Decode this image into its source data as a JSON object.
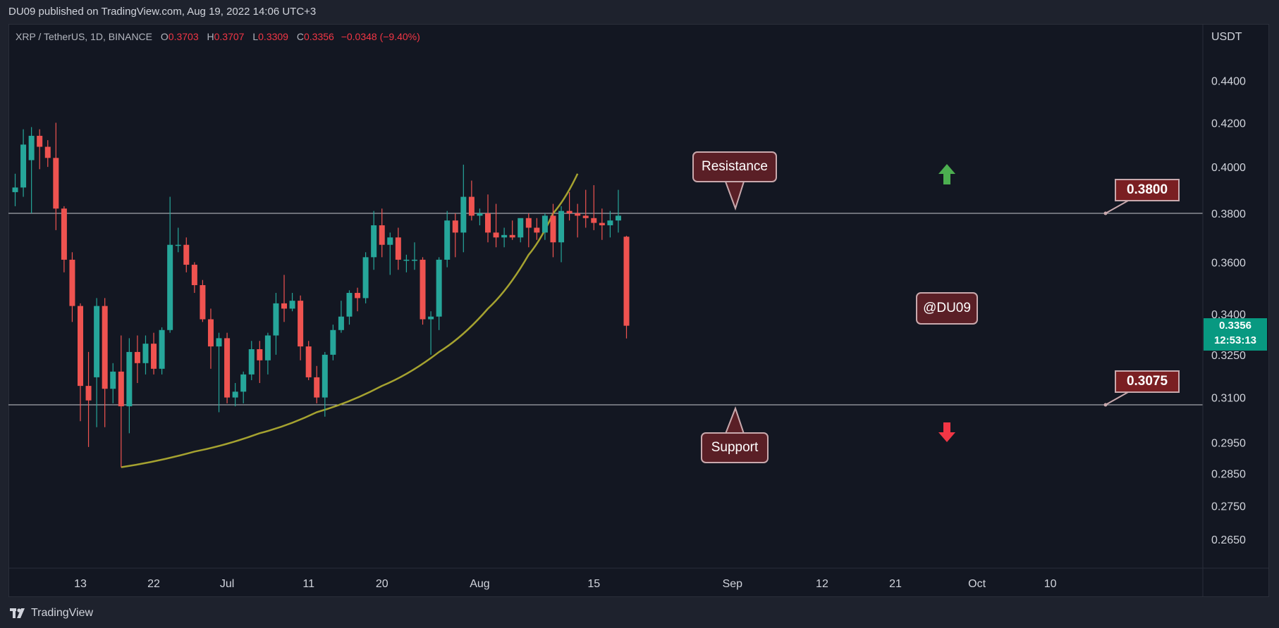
{
  "header": {
    "published": "DU09 published on TradingView.com, Aug 19, 2022 14:06 UTC+3"
  },
  "legend": {
    "symbol": "XRP / TetherUS, 1D, BINANCE",
    "open_label": "O",
    "open": "0.3703",
    "high_label": "H",
    "high": "0.3707",
    "low_label": "L",
    "low": "0.3309",
    "close_label": "C",
    "close": "0.3356",
    "change": "−0.0348 (−9.40%)"
  },
  "axis": {
    "currency": "USDT",
    "current_price": "0.3356",
    "countdown": "12:53:13"
  },
  "annotations": {
    "resistance": "Resistance",
    "support": "Support",
    "watermark": "@DU09",
    "resistance_level": "0.3800",
    "support_level": "0.3075"
  },
  "footer": {
    "brand": "TradingView"
  },
  "colors": {
    "up": "#26a69a",
    "down": "#ef5350",
    "curve": "#a5a230",
    "background": "#131722"
  },
  "icons": [
    "green-up-arrow-icon",
    "red-down-arrow-icon",
    "tradingview-logo-icon"
  ],
  "chart_data": {
    "type": "candlestick",
    "scale": "log",
    "y_ticks": [
      0.44,
      0.42,
      0.4,
      0.38,
      0.36,
      0.34,
      0.325,
      0.31,
      0.295,
      0.285,
      0.275,
      0.265
    ],
    "y_tick_labels": [
      "0.4400",
      "0.4200",
      "0.4000",
      "0.3800",
      "0.3600",
      "0.3400",
      "0.3250",
      "0.3100",
      "0.2950",
      "0.2850",
      "0.2750",
      "0.2650"
    ],
    "x_ticks": [
      {
        "label": "13",
        "date": "2022-06-13"
      },
      {
        "label": "22",
        "date": "2022-06-22"
      },
      {
        "label": "Jul",
        "date": "2022-07-01"
      },
      {
        "label": "11",
        "date": "2022-07-11"
      },
      {
        "label": "20",
        "date": "2022-07-20"
      },
      {
        "label": "Aug",
        "date": "2022-08-01"
      },
      {
        "label": "15",
        "date": "2022-08-15"
      },
      {
        "label": "Sep",
        "date": "2022-09-01"
      },
      {
        "label": "12",
        "date": "2022-09-12"
      },
      {
        "label": "21",
        "date": "2022-09-21"
      },
      {
        "label": "Oct",
        "date": "2022-10-01"
      },
      {
        "label": "10",
        "date": "2022-10-10"
      }
    ],
    "horizontal_lines": [
      0.38,
      0.3075
    ],
    "candles": [
      {
        "date": "2022-06-05",
        "o": 0.389,
        "h": 0.397,
        "l": 0.383,
        "c": 0.391
      },
      {
        "date": "2022-06-06",
        "o": 0.391,
        "h": 0.417,
        "l": 0.387,
        "c": 0.41
      },
      {
        "date": "2022-06-07",
        "o": 0.403,
        "h": 0.418,
        "l": 0.38,
        "c": 0.414
      },
      {
        "date": "2022-06-08",
        "o": 0.414,
        "h": 0.417,
        "l": 0.399,
        "c": 0.409
      },
      {
        "date": "2022-06-09",
        "o": 0.409,
        "h": 0.412,
        "l": 0.4,
        "c": 0.404
      },
      {
        "date": "2022-06-10",
        "o": 0.404,
        "h": 0.42,
        "l": 0.373,
        "c": 0.382
      },
      {
        "date": "2022-06-11",
        "o": 0.382,
        "h": 0.383,
        "l": 0.356,
        "c": 0.361
      },
      {
        "date": "2022-06-12",
        "o": 0.361,
        "h": 0.364,
        "l": 0.337,
        "c": 0.343
      },
      {
        "date": "2022-06-13",
        "o": 0.343,
        "h": 0.344,
        "l": 0.302,
        "c": 0.314
      },
      {
        "date": "2022-06-14",
        "o": 0.314,
        "h": 0.326,
        "l": 0.2935,
        "c": 0.309
      },
      {
        "date": "2022-06-15",
        "o": 0.317,
        "h": 0.346,
        "l": 0.3,
        "c": 0.343
      },
      {
        "date": "2022-06-16",
        "o": 0.343,
        "h": 0.346,
        "l": 0.3,
        "c": 0.313
      },
      {
        "date": "2022-06-17",
        "o": 0.313,
        "h": 0.322,
        "l": 0.308,
        "c": 0.319
      },
      {
        "date": "2022-06-18",
        "o": 0.319,
        "h": 0.332,
        "l": 0.287,
        "c": 0.307
      },
      {
        "date": "2022-06-19",
        "o": 0.307,
        "h": 0.331,
        "l": 0.298,
        "c": 0.326
      },
      {
        "date": "2022-06-20",
        "o": 0.326,
        "h": 0.332,
        "l": 0.315,
        "c": 0.322
      },
      {
        "date": "2022-06-21",
        "o": 0.322,
        "h": 0.332,
        "l": 0.318,
        "c": 0.329
      },
      {
        "date": "2022-06-22",
        "o": 0.329,
        "h": 0.333,
        "l": 0.318,
        "c": 0.32
      },
      {
        "date": "2022-06-23",
        "o": 0.32,
        "h": 0.335,
        "l": 0.318,
        "c": 0.334
      },
      {
        "date": "2022-06-24",
        "o": 0.334,
        "h": 0.387,
        "l": 0.333,
        "c": 0.367
      },
      {
        "date": "2022-06-25",
        "o": 0.367,
        "h": 0.374,
        "l": 0.364,
        "c": 0.367
      },
      {
        "date": "2022-06-26",
        "o": 0.367,
        "h": 0.37,
        "l": 0.356,
        "c": 0.359
      },
      {
        "date": "2022-06-27",
        "o": 0.359,
        "h": 0.36,
        "l": 0.348,
        "c": 0.351
      },
      {
        "date": "2022-06-28",
        "o": 0.351,
        "h": 0.353,
        "l": 0.337,
        "c": 0.338
      },
      {
        "date": "2022-06-29",
        "o": 0.338,
        "h": 0.342,
        "l": 0.32,
        "c": 0.328
      },
      {
        "date": "2022-06-30",
        "o": 0.328,
        "h": 0.333,
        "l": 0.305,
        "c": 0.331
      },
      {
        "date": "2022-07-01",
        "o": 0.331,
        "h": 0.333,
        "l": 0.308,
        "c": 0.31
      },
      {
        "date": "2022-07-02",
        "o": 0.31,
        "h": 0.315,
        "l": 0.307,
        "c": 0.312
      },
      {
        "date": "2022-07-03",
        "o": 0.312,
        "h": 0.319,
        "l": 0.308,
        "c": 0.318
      },
      {
        "date": "2022-07-04",
        "o": 0.318,
        "h": 0.33,
        "l": 0.316,
        "c": 0.327
      },
      {
        "date": "2022-07-05",
        "o": 0.327,
        "h": 0.33,
        "l": 0.315,
        "c": 0.323
      },
      {
        "date": "2022-07-06",
        "o": 0.323,
        "h": 0.333,
        "l": 0.318,
        "c": 0.332
      },
      {
        "date": "2022-07-07",
        "o": 0.332,
        "h": 0.348,
        "l": 0.325,
        "c": 0.344
      },
      {
        "date": "2022-07-08",
        "o": 0.344,
        "h": 0.355,
        "l": 0.337,
        "c": 0.342
      },
      {
        "date": "2022-07-09",
        "o": 0.342,
        "h": 0.348,
        "l": 0.341,
        "c": 0.345
      },
      {
        "date": "2022-07-10",
        "o": 0.345,
        "h": 0.347,
        "l": 0.323,
        "c": 0.328
      },
      {
        "date": "2022-07-11",
        "o": 0.328,
        "h": 0.33,
        "l": 0.316,
        "c": 0.317
      },
      {
        "date": "2022-07-12",
        "o": 0.317,
        "h": 0.321,
        "l": 0.308,
        "c": 0.31
      },
      {
        "date": "2022-07-13",
        "o": 0.31,
        "h": 0.326,
        "l": 0.3035,
        "c": 0.325
      },
      {
        "date": "2022-07-14",
        "o": 0.325,
        "h": 0.336,
        "l": 0.323,
        "c": 0.334
      },
      {
        "date": "2022-07-15",
        "o": 0.334,
        "h": 0.345,
        "l": 0.333,
        "c": 0.339
      },
      {
        "date": "2022-07-16",
        "o": 0.339,
        "h": 0.349,
        "l": 0.336,
        "c": 0.348
      },
      {
        "date": "2022-07-17",
        "o": 0.348,
        "h": 0.35,
        "l": 0.341,
        "c": 0.346
      },
      {
        "date": "2022-07-18",
        "o": 0.346,
        "h": 0.364,
        "l": 0.344,
        "c": 0.362
      },
      {
        "date": "2022-07-19",
        "o": 0.362,
        "h": 0.381,
        "l": 0.357,
        "c": 0.375
      },
      {
        "date": "2022-07-20",
        "o": 0.375,
        "h": 0.382,
        "l": 0.362,
        "c": 0.367
      },
      {
        "date": "2022-07-21",
        "o": 0.367,
        "h": 0.372,
        "l": 0.355,
        "c": 0.37
      },
      {
        "date": "2022-07-22",
        "o": 0.37,
        "h": 0.374,
        "l": 0.357,
        "c": 0.361
      },
      {
        "date": "2022-07-23",
        "o": 0.361,
        "h": 0.363,
        "l": 0.356,
        "c": 0.361
      },
      {
        "date": "2022-07-24",
        "o": 0.361,
        "h": 0.368,
        "l": 0.357,
        "c": 0.361
      },
      {
        "date": "2022-07-25",
        "o": 0.361,
        "h": 0.362,
        "l": 0.336,
        "c": 0.338
      },
      {
        "date": "2022-07-26",
        "o": 0.338,
        "h": 0.341,
        "l": 0.325,
        "c": 0.339
      },
      {
        "date": "2022-07-27",
        "o": 0.339,
        "h": 0.362,
        "l": 0.334,
        "c": 0.361
      },
      {
        "date": "2022-07-28",
        "o": 0.361,
        "h": 0.381,
        "l": 0.358,
        "c": 0.377
      },
      {
        "date": "2022-07-29",
        "o": 0.377,
        "h": 0.38,
        "l": 0.362,
        "c": 0.372
      },
      {
        "date": "2022-07-30",
        "o": 0.372,
        "h": 0.401,
        "l": 0.364,
        "c": 0.387
      },
      {
        "date": "2022-07-31",
        "o": 0.387,
        "h": 0.394,
        "l": 0.377,
        "c": 0.379
      },
      {
        "date": "2022-08-01",
        "o": 0.379,
        "h": 0.382,
        "l": 0.375,
        "c": 0.38
      },
      {
        "date": "2022-08-02",
        "o": 0.38,
        "h": 0.388,
        "l": 0.368,
        "c": 0.372
      },
      {
        "date": "2022-08-03",
        "o": 0.372,
        "h": 0.384,
        "l": 0.366,
        "c": 0.37
      },
      {
        "date": "2022-08-04",
        "o": 0.37,
        "h": 0.374,
        "l": 0.366,
        "c": 0.371
      },
      {
        "date": "2022-08-05",
        "o": 0.371,
        "h": 0.377,
        "l": 0.369,
        "c": 0.37
      },
      {
        "date": "2022-08-06",
        "o": 0.37,
        "h": 0.377,
        "l": 0.368,
        "c": 0.378
      },
      {
        "date": "2022-08-07",
        "o": 0.378,
        "h": 0.38,
        "l": 0.366,
        "c": 0.374
      },
      {
        "date": "2022-08-08",
        "o": 0.374,
        "h": 0.378,
        "l": 0.369,
        "c": 0.372
      },
      {
        "date": "2022-08-09",
        "o": 0.372,
        "h": 0.38,
        "l": 0.369,
        "c": 0.379
      },
      {
        "date": "2022-08-10",
        "o": 0.379,
        "h": 0.384,
        "l": 0.362,
        "c": 0.368
      },
      {
        "date": "2022-08-11",
        "o": 0.368,
        "h": 0.383,
        "l": 0.36,
        "c": 0.381
      },
      {
        "date": "2022-08-12",
        "o": 0.381,
        "h": 0.389,
        "l": 0.377,
        "c": 0.38
      },
      {
        "date": "2022-08-13",
        "o": 0.38,
        "h": 0.384,
        "l": 0.37,
        "c": 0.379
      },
      {
        "date": "2022-08-14",
        "o": 0.379,
        "h": 0.39,
        "l": 0.374,
        "c": 0.378
      },
      {
        "date": "2022-08-15",
        "o": 0.378,
        "h": 0.392,
        "l": 0.373,
        "c": 0.376
      },
      {
        "date": "2022-08-16",
        "o": 0.376,
        "h": 0.382,
        "l": 0.369,
        "c": 0.375
      },
      {
        "date": "2022-08-17",
        "o": 0.375,
        "h": 0.381,
        "l": 0.37,
        "c": 0.377
      },
      {
        "date": "2022-08-18",
        "o": 0.377,
        "h": 0.39,
        "l": 0.372,
        "c": 0.379
      },
      {
        "date": "2022-08-19",
        "o": 0.3703,
        "h": 0.3707,
        "l": 0.3309,
        "c": 0.3356
      }
    ],
    "curve": [
      {
        "date": "2022-06-18",
        "y": 0.287
      },
      {
        "date": "2022-06-27",
        "y": 0.292
      },
      {
        "date": "2022-07-05",
        "y": 0.298
      },
      {
        "date": "2022-07-12",
        "y": 0.305
      },
      {
        "date": "2022-07-20",
        "y": 0.314
      },
      {
        "date": "2022-07-27",
        "y": 0.326
      },
      {
        "date": "2022-08-02",
        "y": 0.342
      },
      {
        "date": "2022-08-07",
        "y": 0.363
      },
      {
        "date": "2022-08-10",
        "y": 0.38
      },
      {
        "date": "2022-08-13",
        "y": 0.397
      }
    ]
  }
}
